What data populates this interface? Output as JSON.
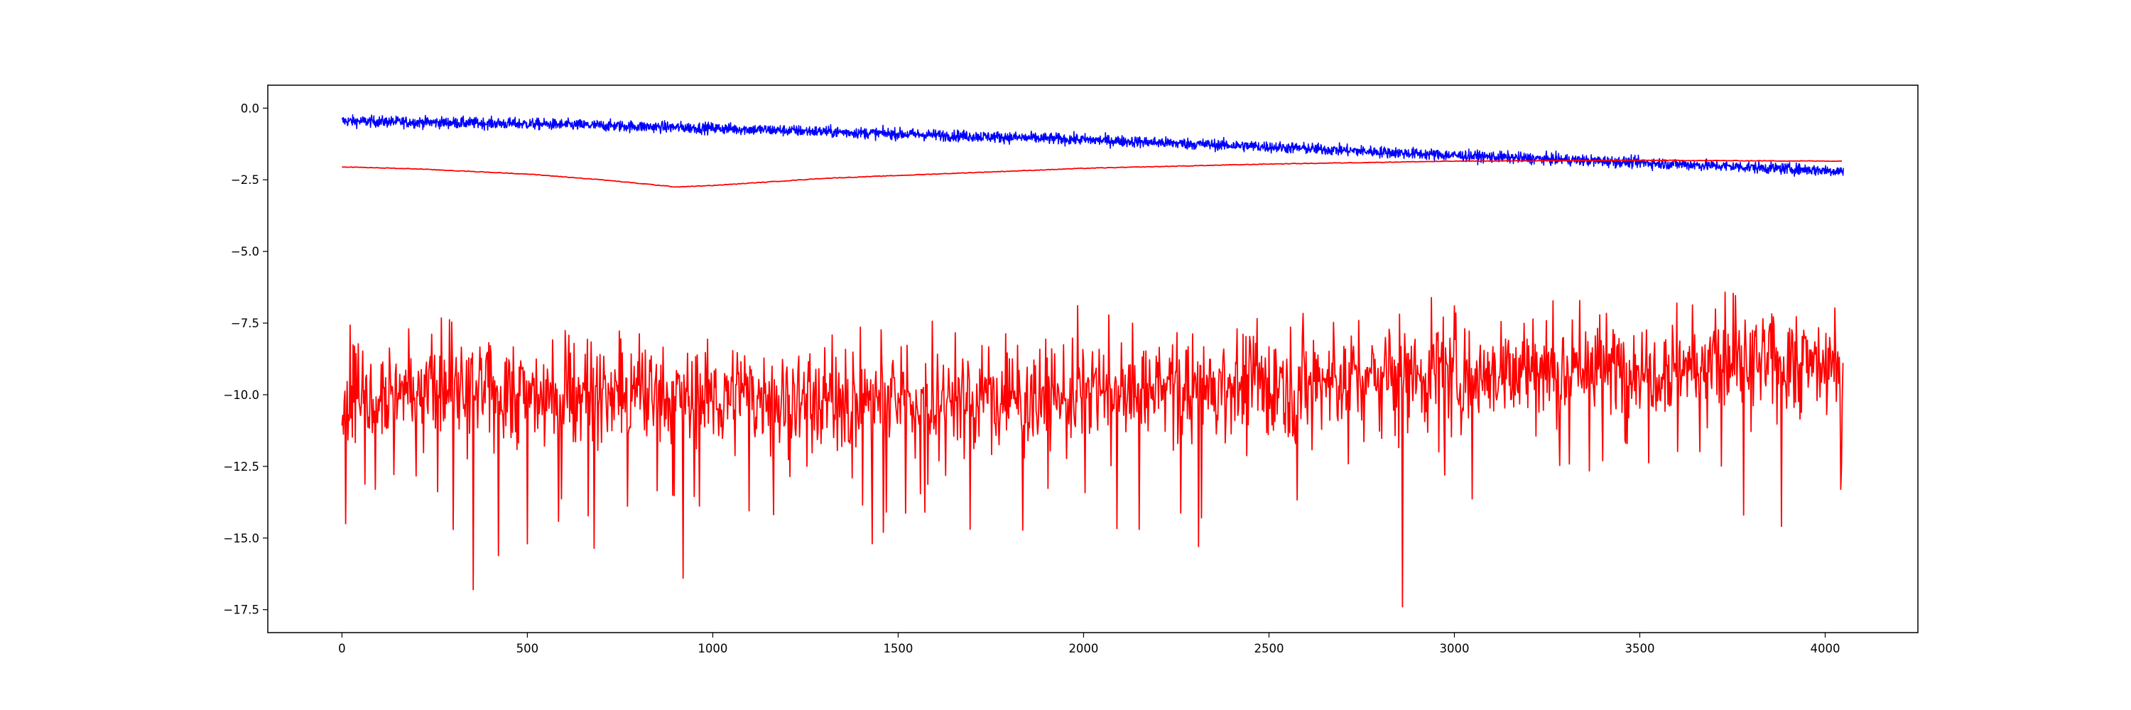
{
  "chart_data": {
    "type": "line",
    "title": "",
    "xlabel": "",
    "ylabel": "",
    "xlim": [
      -200,
      4250
    ],
    "ylim": [
      -18.3,
      0.8
    ],
    "x_ticks": [
      0,
      500,
      1000,
      1500,
      2000,
      2500,
      3000,
      3500,
      4000
    ],
    "x_tick_labels": [
      "0",
      "500",
      "1000",
      "1500",
      "2000",
      "2500",
      "3000",
      "3500",
      "4000"
    ],
    "y_ticks": [
      0.0,
      -2.5,
      -5.0,
      -7.5,
      -10.0,
      -12.5,
      -15.0,
      -17.5
    ],
    "y_tick_labels": [
      "0.0",
      "−2.5",
      "−5.0",
      "−7.5",
      "−10.0",
      "−12.5",
      "−15.0",
      "−17.5"
    ],
    "grid": false,
    "legend": "none",
    "n_points": 4050,
    "series": [
      {
        "color": "#0000ff",
        "style": "noisy",
        "x": [
          0,
          500,
          1000,
          1500,
          2000,
          2500,
          3000,
          3500,
          4050
        ],
        "trend": [
          -0.45,
          -0.55,
          -0.7,
          -0.9,
          -1.1,
          -1.35,
          -1.65,
          -1.9,
          -2.2
        ],
        "noise_amplitude": 0.18
      },
      {
        "color": "#ff0000",
        "style": "smooth",
        "x": [
          0,
          200,
          500,
          700,
          900,
          1000,
          1300,
          1700,
          2000,
          2500,
          3000,
          3500,
          4050
        ],
        "y": [
          -2.05,
          -2.12,
          -2.3,
          -2.5,
          -2.75,
          -2.7,
          -2.45,
          -2.25,
          -2.1,
          -1.95,
          -1.85,
          -1.82,
          -1.85
        ]
      },
      {
        "color": "#ff0000",
        "style": "spiky",
        "x": [
          0,
          500,
          1000,
          1500,
          2000,
          2500,
          3000,
          3500,
          4050
        ],
        "trend": [
          -9.7,
          -10.0,
          -10.1,
          -10.2,
          -10.0,
          -9.6,
          -9.2,
          -9.0,
          -8.9
        ],
        "noise_amplitude": 0.9,
        "spikes": [
          {
            "x": 10,
            "y": -14.5
          },
          {
            "x": 90,
            "y": -13.3
          },
          {
            "x": 300,
            "y": -14.7
          },
          {
            "x": 355,
            "y": -16.8
          },
          {
            "x": 500,
            "y": -15.2
          },
          {
            "x": 920,
            "y": -16.4
          },
          {
            "x": 1430,
            "y": -15.2
          },
          {
            "x": 1460,
            "y": -14.8
          },
          {
            "x": 2150,
            "y": -14.7
          },
          {
            "x": 2310,
            "y": -15.3
          },
          {
            "x": 2860,
            "y": -17.4
          },
          {
            "x": 3780,
            "y": -14.2
          },
          {
            "x": 4045,
            "y": -12.5
          },
          {
            "x": 3600,
            "y": -6.8
          },
          {
            "x": 3000,
            "y": -6.9
          }
        ]
      }
    ]
  }
}
